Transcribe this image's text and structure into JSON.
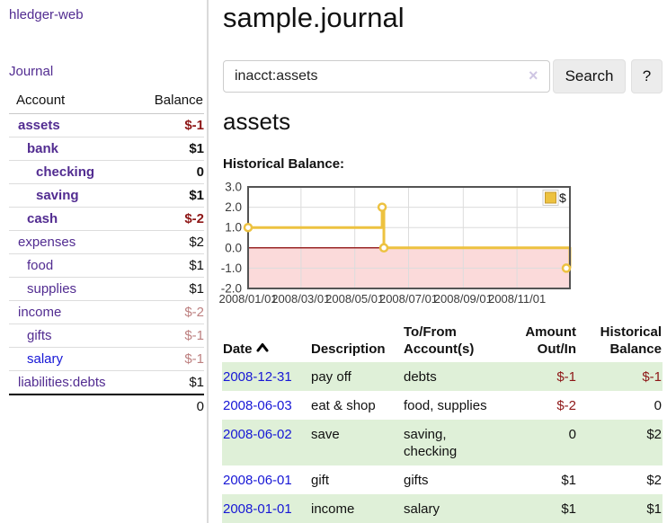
{
  "app": {
    "brand": "hledger-web",
    "nav_journal": "Journal"
  },
  "colors": {
    "accent_purple": "#522c91",
    "link_blue": "#1717d6",
    "negative_strong": "#8e1717",
    "negative_soft": "#bd8080",
    "row_stripe_green": "#dff0d8",
    "series_yellow": "#edc240"
  },
  "sidebar": {
    "accounts_header": {
      "account": "Account",
      "balance": "Balance"
    },
    "accounts": [
      {
        "name": "assets",
        "depth": 1,
        "bold": true,
        "balance": "$-1",
        "neg": "strong"
      },
      {
        "name": "bank",
        "depth": 2,
        "bold": true,
        "balance": "$1"
      },
      {
        "name": "checking",
        "depth": 3,
        "bold": true,
        "balance": "0"
      },
      {
        "name": "saving",
        "depth": 3,
        "bold": true,
        "balance": "$1"
      },
      {
        "name": "cash",
        "depth": 2,
        "bold": true,
        "balance": "$-2",
        "neg": "strong"
      },
      {
        "name": "expenses",
        "depth": 1,
        "bold": false,
        "balance": "$2"
      },
      {
        "name": "food",
        "depth": 2,
        "bold": false,
        "balance": "$1"
      },
      {
        "name": "supplies",
        "depth": 2,
        "bold": false,
        "balance": "$1"
      },
      {
        "name": "income",
        "depth": 1,
        "bold": false,
        "balance": "$-2",
        "neg": "soft"
      },
      {
        "name": "gifts",
        "depth": 2,
        "bold": false,
        "balance": "$-1",
        "neg": "soft"
      },
      {
        "name": "salary",
        "depth": 2,
        "bold": false,
        "balance": "$-1",
        "neg": "soft",
        "link_color": "blue"
      },
      {
        "name": "liabilities:debts",
        "depth": 1,
        "bold": false,
        "balance": "$1"
      }
    ],
    "total": "0"
  },
  "header": {
    "title": "sample.journal"
  },
  "search": {
    "value": "inacct:assets",
    "clear_icon": "×",
    "button": "Search",
    "help_button": "?"
  },
  "account_page": {
    "title": "assets",
    "chart_label": "Historical Balance:"
  },
  "chart_data": {
    "type": "line",
    "title": "Historical Balance:",
    "style": "step-post",
    "series": [
      {
        "name": "$",
        "color": "#edc240",
        "points": [
          {
            "date": "2008-01-01",
            "day": 0,
            "value": 1
          },
          {
            "date": "2008-06-01",
            "day": 152,
            "value": 2
          },
          {
            "date": "2008-06-03",
            "day": 154,
            "value": 0
          },
          {
            "date": "2008-12-31",
            "day": 365,
            "value": -1
          }
        ]
      }
    ],
    "xlim": [
      0,
      365
    ],
    "ylim": [
      -2,
      3
    ],
    "x_ticks": [
      {
        "label": "2008/01/01",
        "day": 0
      },
      {
        "label": "2008/03/01",
        "day": 60
      },
      {
        "label": "2008/05/01",
        "day": 121
      },
      {
        "label": "2008/07/01",
        "day": 182
      },
      {
        "label": "2008/09/01",
        "day": 244
      },
      {
        "label": "2008/11/01",
        "day": 305
      }
    ],
    "y_ticks": [
      {
        "label": "3.0",
        "value": 3
      },
      {
        "label": "2.0",
        "value": 2
      },
      {
        "label": "1.0",
        "value": 1
      },
      {
        "label": "0.0",
        "value": 0
      },
      {
        "label": "-1.0",
        "value": -1
      },
      {
        "label": "-2.0",
        "value": -2
      }
    ],
    "legend": {
      "label": "$",
      "position": "top-right"
    },
    "grid": true,
    "negative_region_fill": "#fbdada",
    "zero_line_color": "#992525",
    "plot_border": "#545454",
    "grid_color": "#dcdcdc",
    "tick_label_color": "#3a3a3a"
  },
  "register": {
    "columns": [
      {
        "label": "Date",
        "sorted": "asc"
      },
      {
        "label": "Description"
      },
      {
        "label": "To/From Account(s)"
      },
      {
        "label": "Amount Out/In"
      },
      {
        "label": "Historical Balance"
      }
    ],
    "rows": [
      {
        "date": "2008-12-31",
        "description": "pay off",
        "accounts": "debts",
        "amount": "$-1",
        "balance": "$-1"
      },
      {
        "date": "2008-06-03",
        "description": "eat & shop",
        "accounts": "food, supplies",
        "amount": "$-2",
        "balance": "0"
      },
      {
        "date": "2008-06-02",
        "description": "save",
        "accounts": "saving, checking",
        "amount": "0",
        "balance": "$2"
      },
      {
        "date": "2008-06-01",
        "description": "gift",
        "accounts": "gifts",
        "amount": "$1",
        "balance": "$2"
      },
      {
        "date": "2008-01-01",
        "description": "income",
        "accounts": "salary",
        "amount": "$1",
        "balance": "$1"
      }
    ]
  }
}
